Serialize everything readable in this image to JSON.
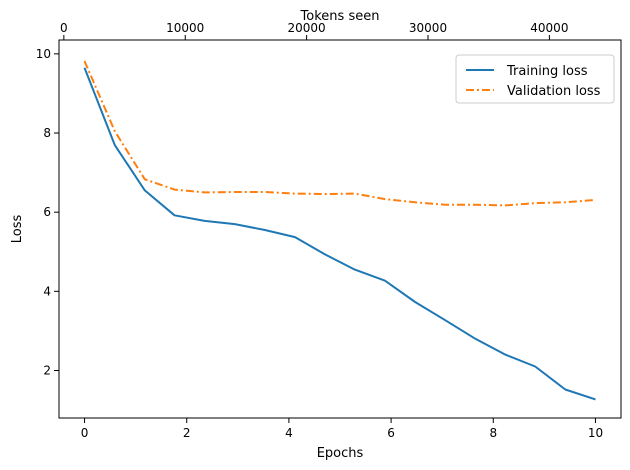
{
  "chart_data": {
    "type": "line",
    "xlabel": "Epochs",
    "ylabel": "Loss",
    "x2label": "Tokens seen",
    "xlim": [
      -0.5,
      10.5
    ],
    "ylim": [
      0.8,
      10.35
    ],
    "x2lim": [
      -400,
      45900
    ],
    "xticks": [
      0,
      2,
      4,
      6,
      8,
      10
    ],
    "yticks": [
      2,
      4,
      6,
      8,
      10
    ],
    "x2ticks": [
      0,
      10000,
      20000,
      30000,
      40000
    ],
    "grid": false,
    "legend_position": "top-right",
    "series": [
      {
        "name": "Training loss",
        "color": "#1f77b4",
        "style": "solid",
        "x": [
          0,
          0.59,
          1.18,
          1.76,
          2.35,
          2.94,
          3.53,
          4.12,
          4.71,
          5.29,
          5.88,
          6.47,
          7.06,
          7.65,
          8.24,
          8.82,
          9.41,
          10
        ],
        "y": [
          9.65,
          7.7,
          6.55,
          5.92,
          5.78,
          5.7,
          5.55,
          5.37,
          4.93,
          4.55,
          4.27,
          3.73,
          3.27,
          2.8,
          2.4,
          2.1,
          1.52,
          1.27
        ]
      },
      {
        "name": "Validation loss",
        "color": "#ff7f0e",
        "style": "dashdot",
        "x": [
          0,
          0.59,
          1.18,
          1.76,
          2.35,
          2.94,
          3.53,
          4.12,
          4.71,
          5.29,
          5.88,
          6.47,
          7.06,
          7.65,
          8.24,
          8.82,
          9.41,
          10
        ],
        "y": [
          9.82,
          8.05,
          6.83,
          6.57,
          6.5,
          6.51,
          6.51,
          6.47,
          6.46,
          6.47,
          6.33,
          6.25,
          6.19,
          6.19,
          6.17,
          6.23,
          6.25,
          6.31
        ]
      }
    ]
  }
}
